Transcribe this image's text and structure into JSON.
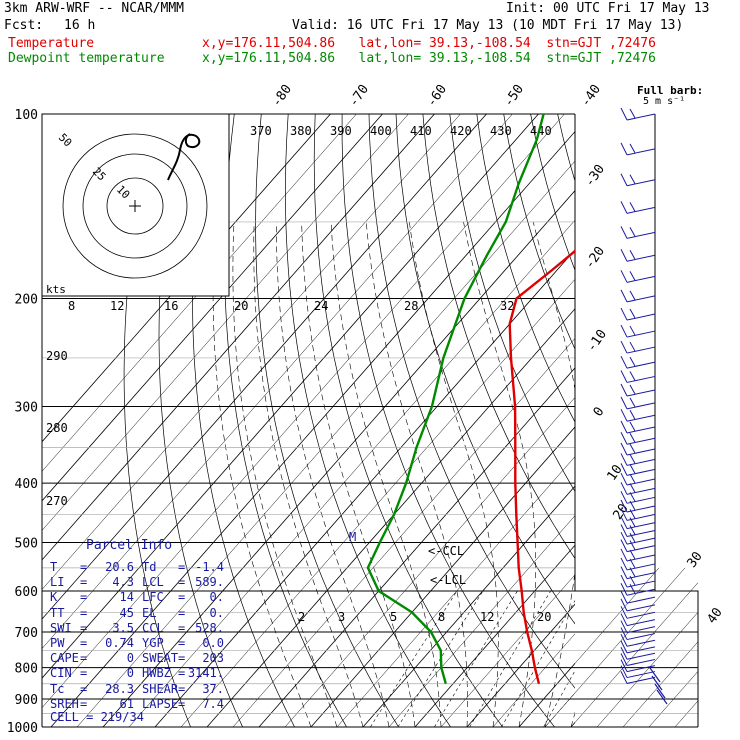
{
  "header": {
    "model": "3km ARW-WRF -- NCAR/MMM",
    "init": "Init: 00 UTC Fri 17 May 13",
    "fcst_label": "Fcst:",
    "fcst_value": "16 h",
    "valid": "Valid: 16 UTC Fri 17 May 13 (10 MDT Fri 17 May 13)",
    "temp_label": "Temperature",
    "dew_label": "Dewpoint temperature",
    "location": "x,y=176.11,504.86   lat,lon= 39.13,-108.54  stn=GJT ,72476"
  },
  "chart_data": {
    "type": "line",
    "diagram": "skew-T log-P",
    "y_axis_pressure_ticks": [
      "100",
      "200",
      "300",
      "400",
      "500",
      "600",
      "700",
      "800",
      "900",
      "1000"
    ],
    "temperature_ticks_top": [
      "-80",
      "-70",
      "-60",
      "-50",
      "-40"
    ],
    "temperature_ticks_right": [
      "-30",
      "-20",
      "-10",
      "0",
      "10",
      "20",
      "30",
      "40"
    ],
    "theta_labels": [
      "370",
      "380",
      "390",
      "400",
      "410",
      "420",
      "430",
      "440"
    ],
    "theta_side_labels": [
      "290",
      "280",
      "270"
    ],
    "mixing_ratio_labels": [
      "2",
      "3",
      "5",
      "8",
      "12",
      "20"
    ],
    "hodograph_kts_labels": [
      "8",
      "12",
      "16",
      "20",
      "24",
      "28",
      "32"
    ],
    "hodo_label": "kts",
    "hodo_ring_labels": [
      "50",
      "25",
      "10"
    ],
    "wind_barb_label": "Full barb:",
    "wind_barb_units": "5 m s⁻¹",
    "annotations": [
      "<-CCL",
      "<-LCL",
      "M"
    ],
    "series": [
      {
        "name": "Temperature",
        "color": "#e00000",
        "points": [
          [
            850,
            16.5
          ],
          [
            800,
            13
          ],
          [
            750,
            9.5
          ],
          [
            700,
            5.5
          ],
          [
            650,
            1.5
          ],
          [
            600,
            -2.5
          ],
          [
            550,
            -7
          ],
          [
            500,
            -11.5
          ],
          [
            450,
            -16.5
          ],
          [
            400,
            -22
          ],
          [
            350,
            -28
          ],
          [
            300,
            -35
          ],
          [
            250,
            -44
          ],
          [
            220,
            -50
          ],
          [
            200,
            -53
          ],
          [
            180,
            -51
          ],
          [
            160,
            -49
          ],
          [
            140,
            -48
          ],
          [
            120,
            -48
          ],
          [
            100,
            -49
          ]
        ]
      },
      {
        "name": "Dewpoint temperature",
        "color": "#008a00",
        "points": [
          [
            850,
            -1.4
          ],
          [
            800,
            -5
          ],
          [
            750,
            -8
          ],
          [
            700,
            -13
          ],
          [
            650,
            -20
          ],
          [
            600,
            -30
          ],
          [
            550,
            -36
          ],
          [
            500,
            -38
          ],
          [
            450,
            -40
          ],
          [
            400,
            -43
          ],
          [
            350,
            -47
          ],
          [
            300,
            -51
          ],
          [
            250,
            -57
          ],
          [
            200,
            -63
          ],
          [
            170,
            -66
          ],
          [
            150,
            -68
          ],
          [
            130,
            -72
          ],
          [
            110,
            -76
          ],
          [
            100,
            -79
          ]
        ]
      }
    ],
    "plim": [
      100,
      1000
    ],
    "tlim_bottom": [
      -40,
      45
    ]
  },
  "parcel_info": {
    "title": "Parcel Info",
    "rows": [
      {
        "l1": "T",
        "v1": "20.6",
        "l2": "Td",
        "v2": "-1.4"
      },
      {
        "l1": "LI",
        "v1": "4.3",
        "l2": "LCL",
        "v2": "589."
      },
      {
        "l1": "K",
        "v1": "14",
        "l2": "LFC",
        "v2": "0."
      },
      {
        "l1": "TT",
        "v1": "45",
        "l2": "EL",
        "v2": "0."
      },
      {
        "l1": "SWI",
        "v1": "3.5",
        "l2": "CCL",
        "v2": "528."
      },
      {
        "l1": "PW",
        "v1": "0.74",
        "l2": "YGP",
        "v2": "0.0"
      },
      {
        "l1": "CAPE",
        "v1": "0",
        "l2": "SWEAT",
        "v2": "203"
      },
      {
        "l1": "CIN",
        "v1": "0",
        "l2": "HWBZ",
        "v2": "3141."
      },
      {
        "l1": "Tc",
        "v1": "28.3",
        "l2": "SHEAR",
        "v2": "37."
      },
      {
        "l1": "SREH",
        "v1": "61",
        "l2": "LAPSE",
        "v2": "7.4"
      }
    ],
    "cell": "CELL = 219/34"
  }
}
